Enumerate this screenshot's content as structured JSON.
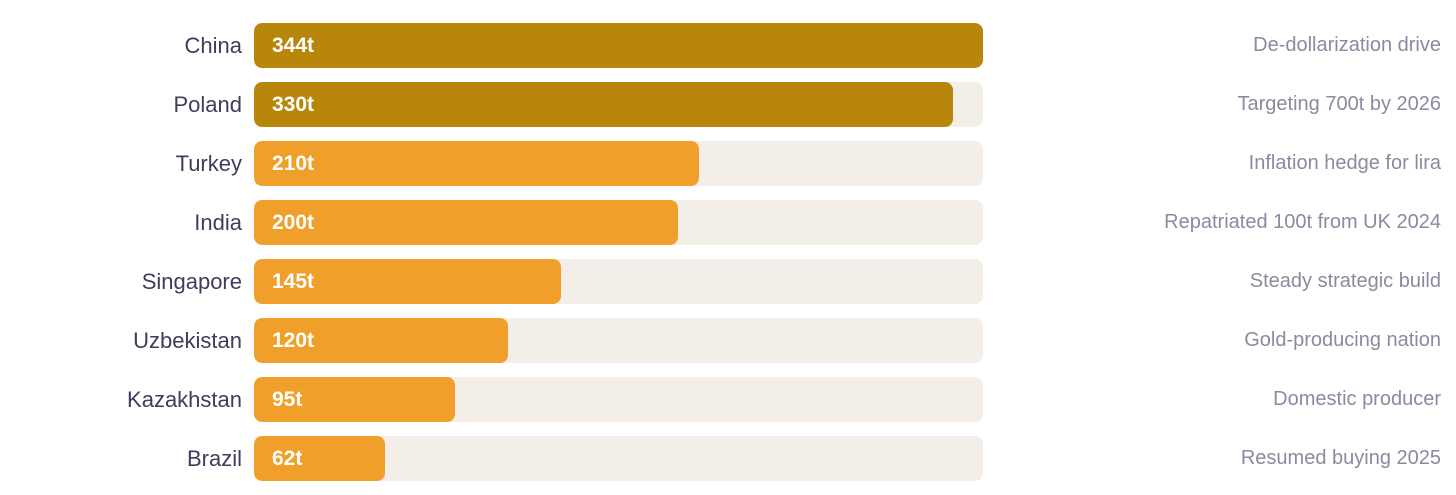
{
  "chart_data": {
    "type": "bar",
    "orientation": "horizontal",
    "categories": [
      "China",
      "Poland",
      "Turkey",
      "India",
      "Singapore",
      "Uzbekistan",
      "Kazakhstan",
      "Brazil"
    ],
    "values": [
      344,
      330,
      210,
      200,
      145,
      120,
      95,
      62
    ],
    "value_labels": [
      "344t",
      "330t",
      "210t",
      "200t",
      "145t",
      "120t",
      "95t",
      "62t"
    ],
    "annotations": [
      "De-dollarization drive",
      "Targeting 700t by 2026",
      "Inflation hedge for lira",
      "Repatriated 100t from UK 2024",
      "Steady strategic build",
      "Gold-producing nation",
      "Domestic producer",
      "Resumed buying 2025"
    ],
    "xlim": [
      0,
      344
    ],
    "grid": false,
    "legend": "none",
    "colors": {
      "top": "#b8860b",
      "other": "#f0a02a",
      "track": "#f3efe8",
      "label": "#3d3d5c",
      "annotation": "#8a8aa0"
    },
    "highlight_count": 2
  }
}
